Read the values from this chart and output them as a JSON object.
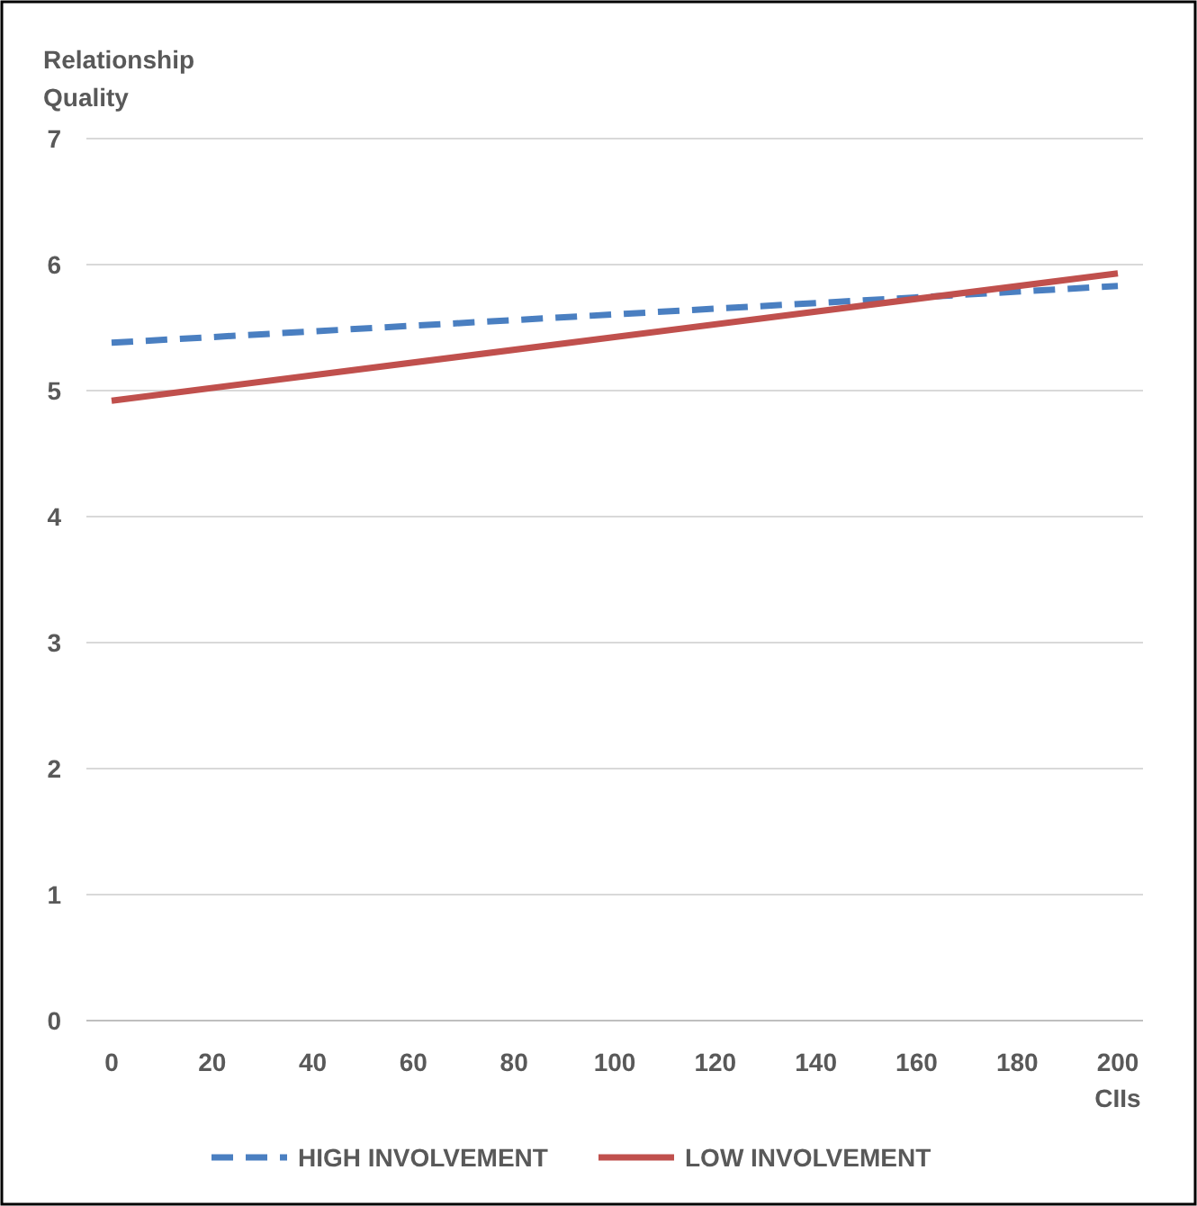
{
  "chart_data": {
    "type": "line",
    "ylabel": "Relationship Quality",
    "xlabel": "CIIs",
    "x": [
      0,
      200
    ],
    "series": [
      {
        "name": "HIGH INVOLVEMENT",
        "color": "#4a7fc1",
        "values": [
          5.38,
          5.83
        ],
        "line_style": "dashed"
      },
      {
        "name": "LOW INVOLVEMENT",
        "color": "#c0504d",
        "values": [
          4.92,
          5.93
        ],
        "line_style": "solid"
      }
    ],
    "xlim": [
      -5,
      205
    ],
    "xticks": [
      0,
      20,
      40,
      60,
      80,
      100,
      120,
      140,
      160,
      180,
      200
    ],
    "ylim": [
      0,
      7
    ],
    "yticks": [
      0,
      1,
      2,
      3,
      4,
      5,
      6,
      7
    ],
    "grid": "y",
    "legend": "bottom",
    "marker": "none"
  }
}
